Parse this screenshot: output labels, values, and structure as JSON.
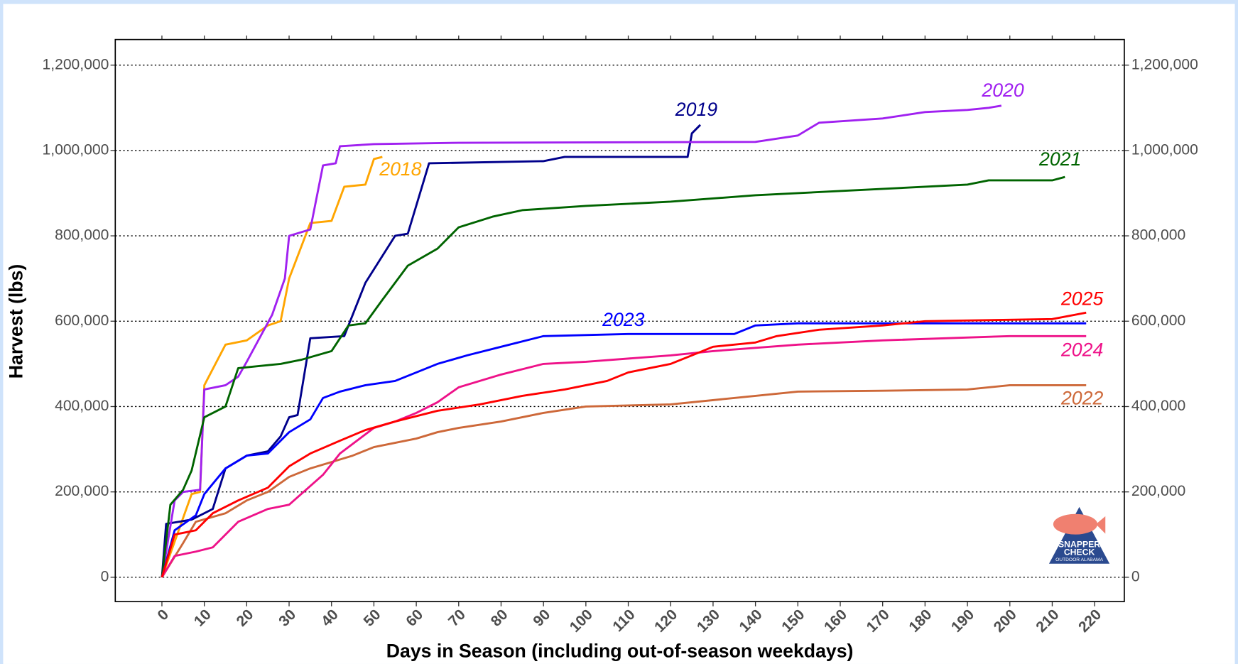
{
  "chart_data": {
    "type": "line",
    "xlabel": "Days in Season (including out-of-season weekdays)",
    "ylabel": "Harvest (lbs)",
    "xlim": [
      -11,
      227
    ],
    "ylim": [
      -57000,
      1260000
    ],
    "xticks": [
      0,
      10,
      20,
      30,
      40,
      50,
      60,
      70,
      80,
      90,
      100,
      110,
      120,
      130,
      140,
      150,
      160,
      170,
      180,
      190,
      200,
      210,
      220
    ],
    "yticks": [
      0,
      {
        "value": 200000,
        "label": "200,000"
      },
      {
        "value": 400000,
        "label": "400,000"
      },
      {
        "value": 600000,
        "label": "600,000"
      },
      {
        "value": 800000,
        "label": "800,000"
      },
      {
        "value": 1000000,
        "label": "1,000,000"
      },
      {
        "value": 1200000,
        "label": "1,200,000"
      }
    ],
    "y2ticks": [
      0,
      {
        "value": 200000,
        "label": "200,000"
      },
      {
        "value": 400000,
        "label": "400,000"
      },
      {
        "value": 600000,
        "label": "600,000"
      },
      {
        "value": 800000,
        "label": "800,000"
      },
      {
        "value": 1000000,
        "label": "1,000,000"
      },
      {
        "value": 1200000,
        "label": "1,200,000"
      }
    ],
    "grid": true,
    "series": [
      {
        "name": "2018",
        "color": "#ffa500",
        "x": [
          0,
          7,
          9,
          10,
          15,
          20,
          25,
          28,
          30,
          35,
          40,
          43,
          48,
          50,
          52
        ],
        "values": [
          0,
          195000,
          200000,
          450000,
          545000,
          555000,
          590000,
          600000,
          700000,
          830000,
          835000,
          915000,
          920000,
          980000,
          985000
        ]
      },
      {
        "name": "2019",
        "color": "#00008b",
        "x": [
          0,
          1,
          7,
          12,
          15,
          20,
          25,
          28,
          30,
          32,
          35,
          43,
          48,
          55,
          58,
          63,
          90,
          95,
          124,
          125,
          127
        ],
        "values": [
          0,
          125000,
          135000,
          160000,
          255000,
          285000,
          295000,
          330000,
          375000,
          380000,
          560000,
          565000,
          690000,
          800000,
          805000,
          970000,
          975000,
          985000,
          985000,
          1040000,
          1060000
        ]
      },
      {
        "name": "2020",
        "color": "#a020f0",
        "x": [
          0,
          3,
          5,
          9,
          10,
          15,
          18,
          20,
          23,
          26,
          29,
          30,
          35,
          38,
          41,
          42,
          50,
          70,
          140,
          150,
          155,
          170,
          180,
          190,
          195,
          198
        ],
        "values": [
          0,
          180000,
          200000,
          205000,
          440000,
          450000,
          470000,
          505000,
          560000,
          615000,
          700000,
          800000,
          815000,
          965000,
          970000,
          1010000,
          1015000,
          1018000,
          1020000,
          1035000,
          1065000,
          1075000,
          1090000,
          1095000,
          1100000,
          1105000
        ]
      },
      {
        "name": "2021",
        "color": "#006400",
        "x": [
          0,
          2,
          5,
          7,
          10,
          15,
          18,
          28,
          33,
          40,
          44,
          48,
          52,
          58,
          65,
          70,
          78,
          85,
          100,
          120,
          140,
          160,
          180,
          190,
          195,
          210,
          213
        ],
        "values": [
          0,
          170000,
          205000,
          250000,
          375000,
          400000,
          490000,
          500000,
          510000,
          530000,
          590000,
          595000,
          650000,
          730000,
          770000,
          820000,
          845000,
          860000,
          870000,
          880000,
          895000,
          905000,
          915000,
          920000,
          930000,
          930000,
          938000
        ]
      },
      {
        "name": "2022",
        "color": "#cd6839",
        "x": [
          0,
          5,
          8,
          15,
          20,
          25,
          30,
          35,
          40,
          45,
          50,
          60,
          65,
          70,
          80,
          90,
          100,
          120,
          140,
          150,
          170,
          190,
          200,
          218
        ],
        "values": [
          0,
          80000,
          130000,
          150000,
          180000,
          200000,
          235000,
          255000,
          270000,
          285000,
          305000,
          325000,
          340000,
          350000,
          365000,
          385000,
          400000,
          405000,
          425000,
          435000,
          437000,
          440000,
          450000,
          450000
        ]
      },
      {
        "name": "2023",
        "color": "#0000ff",
        "x": [
          0,
          3,
          8,
          10,
          15,
          20,
          25,
          30,
          35,
          38,
          42,
          48,
          55,
          60,
          65,
          72,
          80,
          90,
          110,
          135,
          140,
          150,
          218
        ],
        "values": [
          0,
          110000,
          145000,
          195000,
          255000,
          285000,
          290000,
          340000,
          370000,
          420000,
          435000,
          450000,
          460000,
          480000,
          500000,
          520000,
          540000,
          565000,
          570000,
          570000,
          590000,
          595000,
          595000
        ]
      },
      {
        "name": "2024",
        "color": "#ee1289",
        "x": [
          0,
          3,
          8,
          12,
          18,
          25,
          30,
          38,
          42,
          50,
          55,
          60,
          65,
          70,
          80,
          90,
          100,
          120,
          130,
          150,
          170,
          200,
          218
        ],
        "values": [
          0,
          50000,
          60000,
          70000,
          130000,
          160000,
          170000,
          240000,
          290000,
          350000,
          365000,
          385000,
          410000,
          445000,
          475000,
          500000,
          505000,
          520000,
          530000,
          545000,
          555000,
          565000,
          565000
        ]
      },
      {
        "name": "2025",
        "color": "#ff0000",
        "x": [
          0,
          3,
          8,
          12,
          18,
          25,
          30,
          35,
          42,
          48,
          55,
          65,
          75,
          85,
          95,
          105,
          110,
          120,
          125,
          130,
          140,
          145,
          155,
          170,
          180,
          210,
          218
        ],
        "values": [
          0,
          100000,
          110000,
          150000,
          180000,
          210000,
          260000,
          290000,
          320000,
          345000,
          365000,
          390000,
          405000,
          425000,
          440000,
          460000,
          480000,
          500000,
          520000,
          540000,
          550000,
          565000,
          580000,
          590000,
          600000,
          605000,
          620000
        ]
      }
    ]
  },
  "logo": {
    "line1": "SNAPPER",
    "line2": "CHECK",
    "line3": "OUTDOOR ALABAMA"
  }
}
